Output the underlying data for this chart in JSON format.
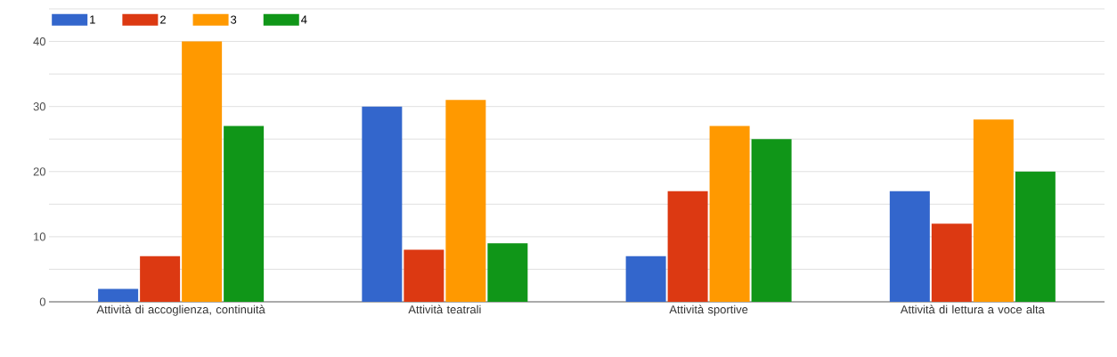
{
  "chart_data": {
    "type": "bar",
    "categories": [
      "Attività di accoglienza, continuità",
      "Attività teatrali",
      "Attività sportive",
      "Attività di lettura a voce alta"
    ],
    "series": [
      {
        "name": "1",
        "color": "#3366cc",
        "values": [
          2,
          30,
          7,
          17
        ]
      },
      {
        "name": "2",
        "color": "#dc3912",
        "values": [
          7,
          8,
          17,
          12
        ]
      },
      {
        "name": "3",
        "color": "#ff9900",
        "values": [
          40,
          31,
          27,
          28
        ]
      },
      {
        "name": "4",
        "color": "#109618",
        "values": [
          27,
          9,
          25,
          20
        ]
      }
    ],
    "ylim": [
      0,
      45
    ],
    "yticks": [
      0,
      {
        "value": 5,
        "label": null
      },
      10,
      {
        "value": 15,
        "label": null
      },
      20,
      {
        "value": 25,
        "label": null
      },
      30,
      {
        "value": 35,
        "label": null
      },
      40,
      {
        "value": 45,
        "label": null
      }
    ],
    "grid": "y",
    "legend": "top left"
  }
}
